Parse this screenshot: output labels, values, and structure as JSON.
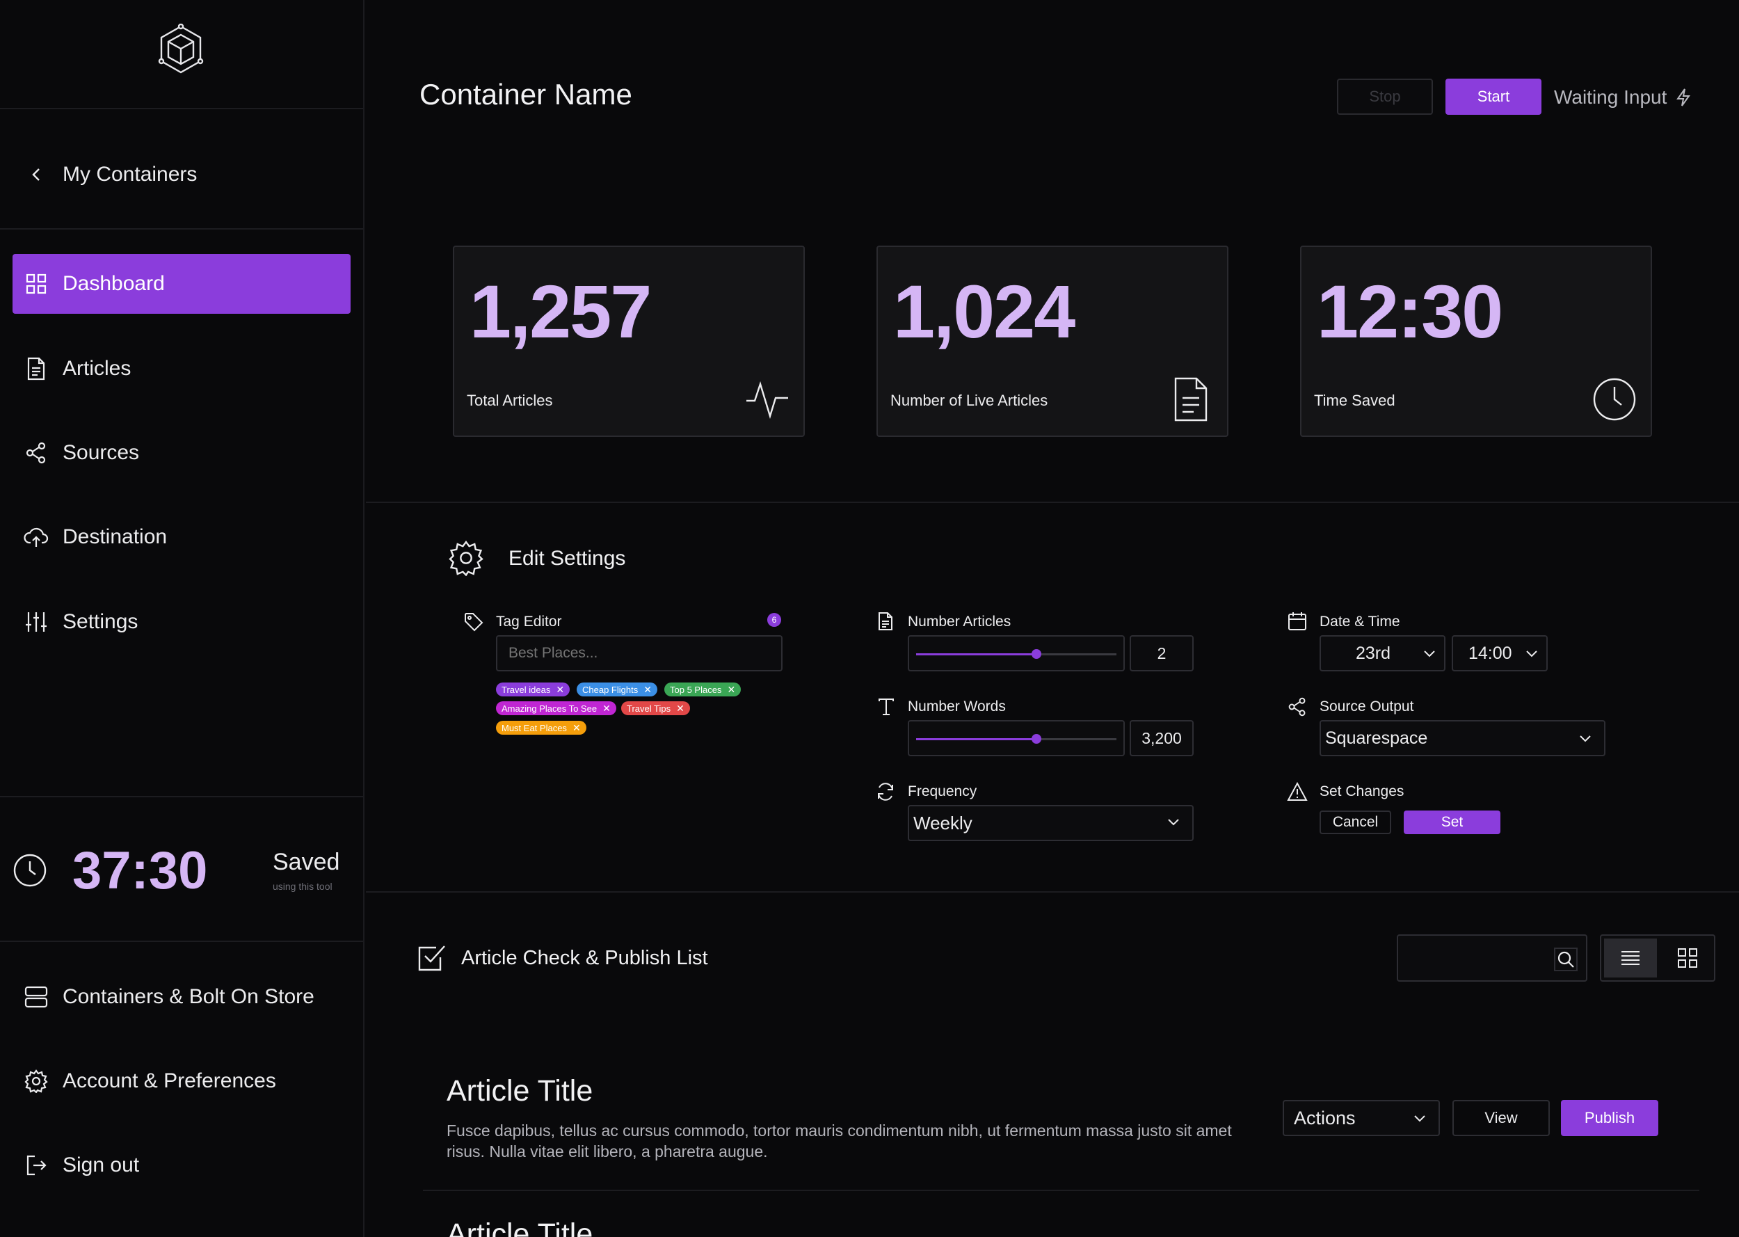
{
  "sidebar": {
    "back_label": "My Containers",
    "nav": [
      {
        "label": "Dashboard",
        "icon": "grid-icon",
        "active": true
      },
      {
        "label": "Articles",
        "icon": "document-icon"
      },
      {
        "label": "Sources",
        "icon": "share-icon"
      },
      {
        "label": "Destination",
        "icon": "cloud-upload-icon"
      },
      {
        "label": "Settings",
        "icon": "sliders-icon"
      }
    ],
    "saved": {
      "time": "37:30",
      "label": "Saved",
      "sublabel": "using this tool"
    },
    "footer": [
      {
        "label": "Containers & Bolt On Store",
        "icon": "server-icon"
      },
      {
        "label": "Account & Preferences",
        "icon": "gear-icon"
      },
      {
        "label": "Sign out",
        "icon": "logout-icon"
      }
    ]
  },
  "header": {
    "title": "Container Name",
    "stop_label": "Stop",
    "start_label": "Start",
    "status": "Waiting Input"
  },
  "stats": [
    {
      "value": "1,257",
      "label": "Total Articles",
      "icon": "activity-icon"
    },
    {
      "value": "1,024",
      "label": "Number of Live Articles",
      "icon": "document-icon"
    },
    {
      "value": "12:30",
      "label": "Time Saved",
      "icon": "clock-icon"
    }
  ],
  "settings": {
    "title": "Edit Settings",
    "tag_editor": {
      "label": "Tag Editor",
      "count": "6",
      "placeholder": "Best Places...",
      "tags": [
        {
          "label": "Travel ideas",
          "color": "#8b3ddc"
        },
        {
          "label": "Cheap Flights",
          "color": "#3b8fe6"
        },
        {
          "label": "Top 5 Places",
          "color": "#3aa655"
        },
        {
          "label": "Amazing Places To See",
          "color": "#c026d3"
        },
        {
          "label": "Travel Tips",
          "color": "#e24848"
        },
        {
          "label": "Must Eat Places",
          "color": "#f59e0b"
        }
      ]
    },
    "number_articles": {
      "label": "Number Articles",
      "value": "2",
      "fraction": 0.6
    },
    "number_words": {
      "label": "Number Words",
      "value": "3,200",
      "fraction": 0.6
    },
    "frequency": {
      "label": "Frequency",
      "value": "Weekly"
    },
    "date_time": {
      "label": "Date & Time",
      "day": "23rd",
      "time": "14:00"
    },
    "source_output": {
      "label": "Source Output",
      "value": "Squarespace"
    },
    "set_changes": {
      "label": "Set Changes",
      "cancel_label": "Cancel",
      "set_label": "Set"
    }
  },
  "article_list": {
    "title": "Article Check & Publish List",
    "search_value": "",
    "articles": [
      {
        "title": "Article Title",
        "body": "Fusce dapibus, tellus ac cursus commodo, tortor mauris condimentum nibh, ut fermentum massa justo sit amet risus. Nulla vitae elit libero, a pharetra augue.",
        "actions_label": "Actions",
        "view_label": "View",
        "publish_label": "Publish"
      },
      {
        "title": "Article Title"
      }
    ]
  },
  "colors": {
    "accent": "#8b3ddc",
    "stat_value": "#d5b6f5",
    "background": "#09090b",
    "card": "#141416"
  }
}
